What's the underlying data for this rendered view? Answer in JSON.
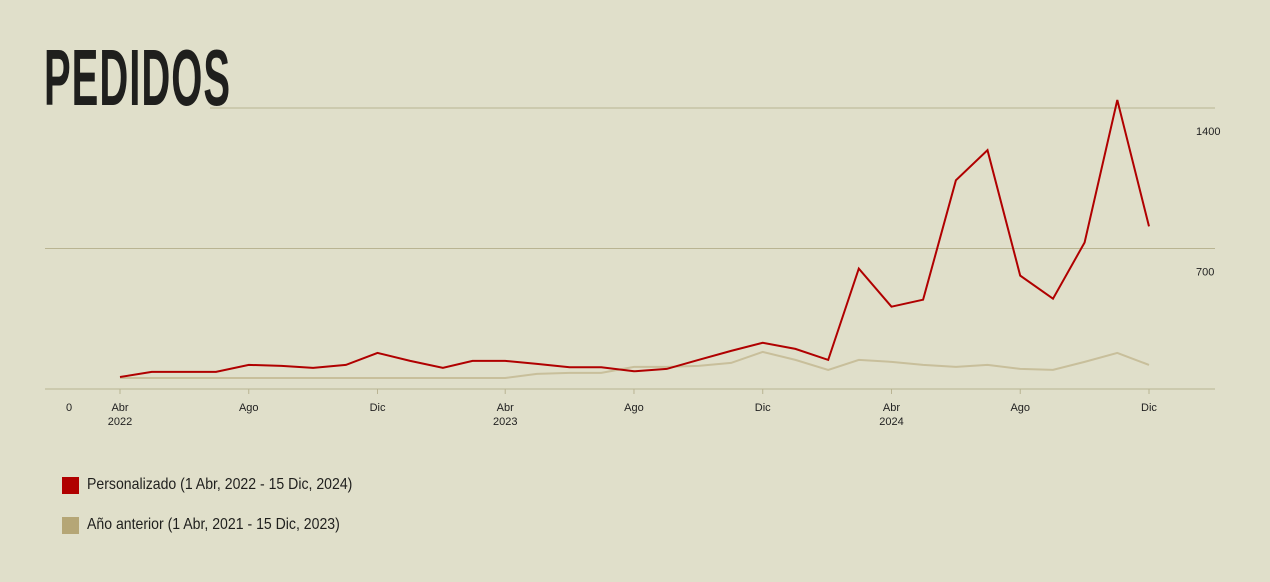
{
  "chart_data": {
    "type": "line",
    "title": "PEDIDOS",
    "ylim": [
      0,
      1400
    ],
    "yticks": [
      0,
      700,
      1400
    ],
    "grid": true,
    "legend_position": "bottom-left",
    "x_ticks": [
      {
        "date": "2022-04-01",
        "label": "Abr",
        "year": "2022"
      },
      {
        "date": "2022-08-01",
        "label": "Ago",
        "year": ""
      },
      {
        "date": "2022-12-01",
        "label": "Dic",
        "year": ""
      },
      {
        "date": "2023-04-01",
        "label": "Abr",
        "year": "2023"
      },
      {
        "date": "2023-08-01",
        "label": "Ago",
        "year": ""
      },
      {
        "date": "2023-12-01",
        "label": "Dic",
        "year": ""
      },
      {
        "date": "2024-04-01",
        "label": "Abr",
        "year": "2024"
      },
      {
        "date": "2024-08-01",
        "label": "Ago",
        "year": ""
      },
      {
        "date": "2024-12-01",
        "label": "Dic",
        "year": ""
      }
    ],
    "series": [
      {
        "name": "Personalizado (1 Abr, 2022 - 15 Dic, 2024)",
        "color": "#b00000",
        "points": [
          [
            "2022-04-01",
            60
          ],
          [
            "2022-05-01",
            85
          ],
          [
            "2022-06-01",
            85
          ],
          [
            "2022-07-01",
            85
          ],
          [
            "2022-08-01",
            120
          ],
          [
            "2022-09-01",
            115
          ],
          [
            "2022-10-01",
            105
          ],
          [
            "2022-11-01",
            120
          ],
          [
            "2022-12-01",
            180
          ],
          [
            "2023-01-01",
            140
          ],
          [
            "2023-02-01",
            105
          ],
          [
            "2023-03-01",
            140
          ],
          [
            "2023-04-01",
            140
          ],
          [
            "2023-05-01",
            125
          ],
          [
            "2023-06-01",
            108
          ],
          [
            "2023-07-01",
            108
          ],
          [
            "2023-08-01",
            88
          ],
          [
            "2023-09-01",
            100
          ],
          [
            "2023-10-01",
            145
          ],
          [
            "2023-11-01",
            190
          ],
          [
            "2023-12-01",
            230
          ],
          [
            "2024-01-01",
            200
          ],
          [
            "2024-02-01",
            145
          ],
          [
            "2024-03-01",
            600
          ],
          [
            "2024-04-01",
            410
          ],
          [
            "2024-05-01",
            445
          ],
          [
            "2024-06-01",
            1040
          ],
          [
            "2024-07-01",
            1190
          ],
          [
            "2024-08-01",
            565
          ],
          [
            "2024-09-01",
            450
          ],
          [
            "2024-10-01",
            730
          ],
          [
            "2024-11-01",
            1440
          ],
          [
            "2024-12-01",
            810
          ]
        ]
      },
      {
        "name": "Año anterior (1 Abr, 2021 - 15 Dic, 2023)",
        "color": "#c8bf9b",
        "points": [
          [
            "2022-04-01",
            55
          ],
          [
            "2022-05-01",
            55
          ],
          [
            "2022-06-01",
            55
          ],
          [
            "2022-07-01",
            55
          ],
          [
            "2022-08-01",
            55
          ],
          [
            "2022-09-01",
            55
          ],
          [
            "2022-10-01",
            55
          ],
          [
            "2022-11-01",
            55
          ],
          [
            "2022-12-01",
            55
          ],
          [
            "2023-01-01",
            55
          ],
          [
            "2023-02-01",
            55
          ],
          [
            "2023-03-01",
            55
          ],
          [
            "2023-04-01",
            55
          ],
          [
            "2023-05-01",
            75
          ],
          [
            "2023-06-01",
            80
          ],
          [
            "2023-07-01",
            80
          ],
          [
            "2023-08-01",
            110
          ],
          [
            "2023-09-01",
            110
          ],
          [
            "2023-10-01",
            115
          ],
          [
            "2023-11-01",
            130
          ],
          [
            "2023-12-01",
            185
          ],
          [
            "2024-01-01",
            145
          ],
          [
            "2024-02-01",
            95
          ],
          [
            "2024-03-01",
            145
          ],
          [
            "2024-04-01",
            135
          ],
          [
            "2024-05-01",
            120
          ],
          [
            "2024-06-01",
            110
          ],
          [
            "2024-07-01",
            120
          ],
          [
            "2024-08-01",
            100
          ],
          [
            "2024-09-01",
            95
          ],
          [
            "2024-10-01",
            135
          ],
          [
            "2024-11-01",
            180
          ],
          [
            "2024-12-01",
            120
          ]
        ]
      }
    ]
  },
  "legend": [
    {
      "label": "Personalizado (1 Abr, 2022 - 15 Dic, 2024)",
      "color": "#b00000"
    },
    {
      "label": "Año anterior (1 Abr, 2021 - 15 Dic, 2023)",
      "color": "#b5a676"
    }
  ]
}
